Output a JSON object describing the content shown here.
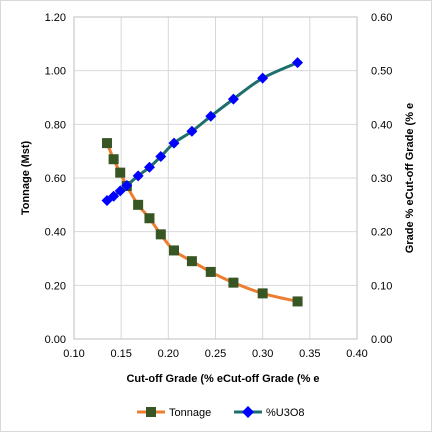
{
  "chart_data": {
    "type": "line",
    "xlabel": "Cut-off  Grade (% eCut-off  Grade (% e",
    "ylabel_left": "Tonnage (Mst)",
    "ylabel_right": "Grade % eCut-off  Grade (% e",
    "xlim": [
      0.1,
      0.4
    ],
    "ylim_left": [
      0.0,
      1.2
    ],
    "ylim_right": [
      0.0,
      0.6
    ],
    "x_ticks": [
      "0.10",
      "0.15",
      "0.20",
      "0.25",
      "0.30",
      "0.35",
      "0.40"
    ],
    "y_left_ticks": [
      "0.00",
      "0.20",
      "0.40",
      "0.60",
      "0.80",
      "1.00",
      "1.20"
    ],
    "y_right_ticks": [
      "0.00",
      "0.10",
      "0.20",
      "0.30",
      "0.40",
      "0.50",
      "0.60"
    ],
    "x_tick_values": [
      0.1,
      0.15,
      0.2,
      0.25,
      0.3,
      0.35,
      0.4
    ],
    "y_left_tick_values": [
      0.0,
      0.2,
      0.4,
      0.6,
      0.8,
      1.0,
      1.2
    ],
    "y_right_tick_values": [
      0.0,
      0.1,
      0.2,
      0.3,
      0.4,
      0.5,
      0.6
    ],
    "grid": true,
    "legend_position": "bottom",
    "series": [
      {
        "name": "Tonnage",
        "axis": "left",
        "line_color": "#ed7d31",
        "marker_color": "#375623",
        "marker": "square",
        "x": [
          0.135,
          0.142,
          0.149,
          0.156,
          0.168,
          0.18,
          0.192,
          0.206,
          0.225,
          0.245,
          0.269,
          0.3,
          0.337
        ],
        "y": [
          0.73,
          0.67,
          0.62,
          0.57,
          0.5,
          0.45,
          0.39,
          0.33,
          0.29,
          0.25,
          0.21,
          0.17,
          0.14
        ]
      },
      {
        "name": "%U3O8",
        "axis": "right",
        "line_color": "#1f6e6e",
        "marker_color": "#0000ff",
        "marker": "diamond",
        "x": [
          0.135,
          0.142,
          0.149,
          0.156,
          0.168,
          0.18,
          0.192,
          0.206,
          0.225,
          0.245,
          0.269,
          0.3,
          0.337
        ],
        "y": [
          0.258,
          0.266,
          0.276,
          0.286,
          0.304,
          0.32,
          0.34,
          0.365,
          0.387,
          0.415,
          0.447,
          0.486,
          0.515
        ]
      }
    ]
  }
}
